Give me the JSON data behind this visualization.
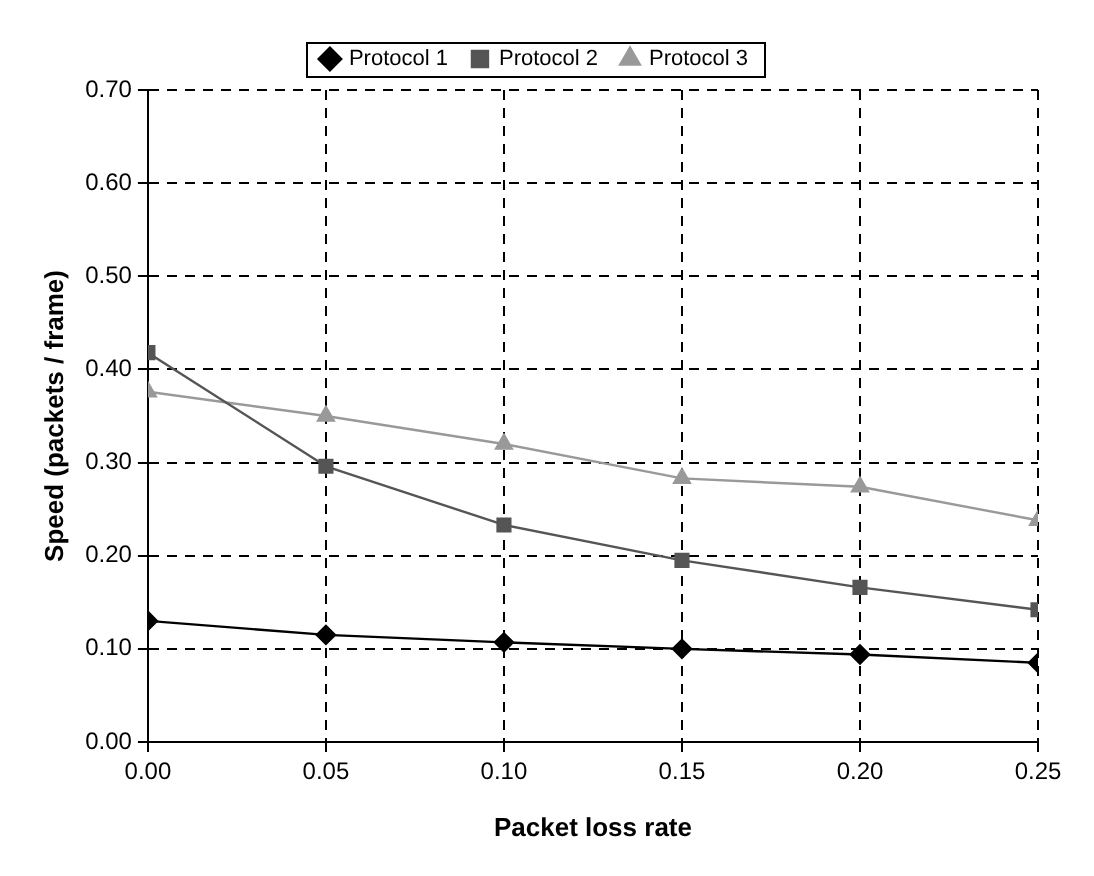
{
  "chart_data": {
    "type": "line",
    "xlabel": "Packet loss rate",
    "ylabel": "Speed (packets / frame)",
    "x": [
      0,
      0.05,
      0.1,
      0.15,
      0.2,
      0.25
    ],
    "series": [
      {
        "name": "Protocol 1",
        "color": "#000000",
        "marker": "diamond",
        "values": [
          0.13,
          0.115,
          0.107,
          0.1,
          0.094,
          0.085
        ]
      },
      {
        "name": "Protocol 2",
        "color": "#555555",
        "marker": "square",
        "values": [
          0.418,
          0.296,
          0.233,
          0.195,
          0.166,
          0.142
        ]
      },
      {
        "name": "Protocol 3",
        "color": "#999999",
        "marker": "triangle",
        "values": [
          0.376,
          0.35,
          0.32,
          0.283,
          0.274,
          0.238
        ]
      }
    ],
    "xlim": [
      0,
      0.25
    ],
    "xticks": [
      {
        "value": 0,
        "label": "0.00"
      },
      {
        "value": 0.05,
        "label": "0.05"
      },
      {
        "value": 0.1,
        "label": "0.10"
      },
      {
        "value": 0.15,
        "label": "0.15"
      },
      {
        "value": 0.2,
        "label": "0.20"
      },
      {
        "value": 0.25,
        "label": "0.25"
      }
    ],
    "ylim": [
      0,
      0.7
    ],
    "yticks": [
      {
        "value": 0,
        "label": "0.00"
      },
      {
        "value": 0.1,
        "label": "0.10"
      },
      {
        "value": 0.2,
        "label": "0.20"
      },
      {
        "value": 0.3,
        "label": "0.30"
      },
      {
        "value": 0.4,
        "label": "0.40"
      },
      {
        "value": 0.5,
        "label": "0.50"
      },
      {
        "value": 0.6,
        "label": "0.60"
      },
      {
        "value": 0.7,
        "label": "0.70"
      }
    ],
    "grid": true,
    "legend": "top",
    "line_style": "solid"
  }
}
